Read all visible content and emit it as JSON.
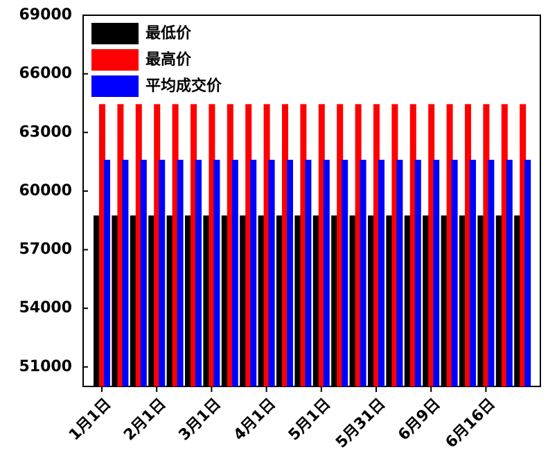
{
  "chart_data": {
    "type": "bar",
    "categories": [
      "1月1日",
      null,
      null,
      "2月1日",
      null,
      null,
      "3月1日",
      null,
      null,
      "4月1日",
      null,
      null,
      "5月1日",
      null,
      null,
      "5月31日",
      null,
      null,
      "6月9日",
      null,
      null,
      "6月16日",
      null,
      null
    ],
    "series": [
      {
        "name": "最低价",
        "color": "#000000",
        "values": [
          58750,
          58750,
          58750,
          58750,
          58750,
          58750,
          58750,
          58750,
          58750,
          58750,
          58750,
          58750,
          58750,
          58750,
          58750,
          58750,
          58750,
          58750,
          58750,
          58750,
          58750,
          58750,
          58750,
          58750
        ]
      },
      {
        "name": "最高价",
        "color": "#ff0000",
        "values": [
          64450,
          64450,
          64450,
          64450,
          64450,
          64450,
          64450,
          64450,
          64450,
          64450,
          64450,
          64450,
          64450,
          64450,
          64450,
          64450,
          64450,
          64450,
          64450,
          64450,
          64450,
          64450,
          64450,
          64450
        ]
      },
      {
        "name": "平均成交价",
        "color": "#0000ff",
        "values": [
          61600,
          61600,
          61600,
          61600,
          61600,
          61600,
          61600,
          61600,
          61600,
          61600,
          61600,
          61600,
          61600,
          61600,
          61600,
          61600,
          61600,
          61600,
          61600,
          61600,
          61600,
          61600,
          61600,
          61600
        ]
      }
    ],
    "ylim": [
      50000,
      69000
    ],
    "yticks": [
      51000,
      54000,
      57000,
      60000,
      63000,
      66000,
      69000
    ],
    "legend": "upper-left"
  }
}
